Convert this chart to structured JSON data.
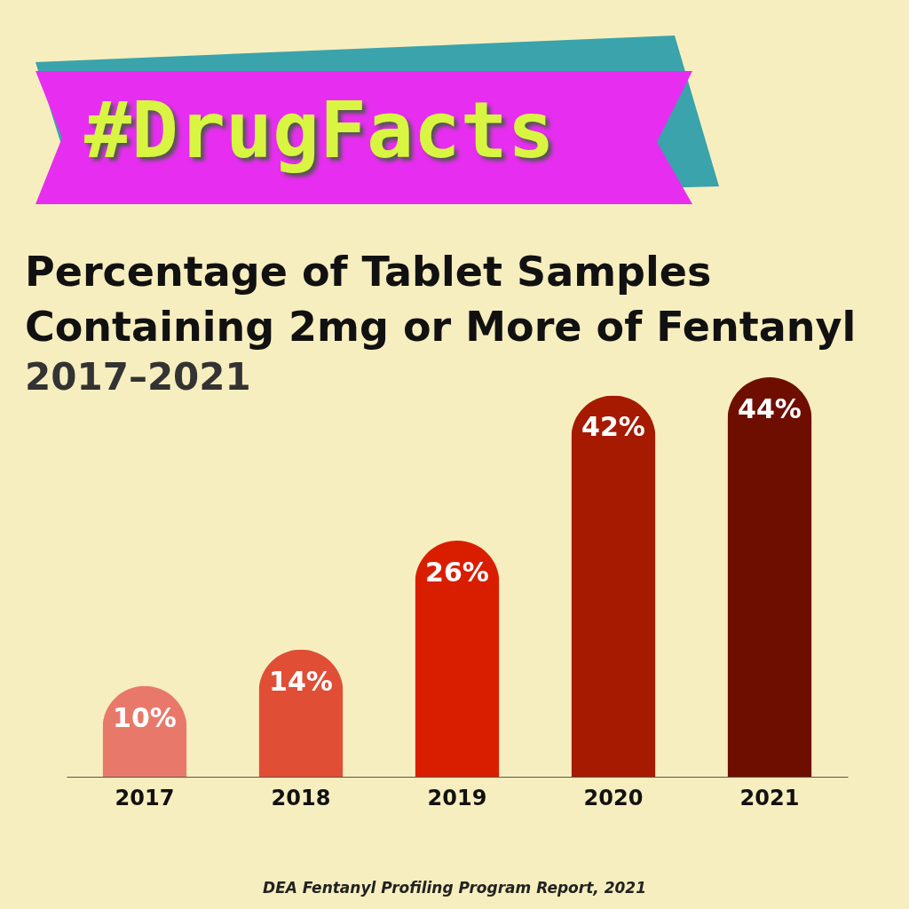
{
  "chart_data": {
    "type": "bar",
    "title": "Percentage of Tablet Samples Containing 2mg or More of Fentanyl",
    "subtitle": "2017–2021",
    "annotations": [
      "#DrugFacts",
      "DEA Fentanyl Profiling Program Report, 2021"
    ],
    "categories": [
      "2017",
      "2018",
      "2019",
      "2020",
      "2021"
    ],
    "values": [
      10,
      14,
      26,
      42,
      44
    ],
    "colors": [
      "#e8796a",
      "#e04e36",
      "#d91e00",
      "#a51a00",
      "#6e0e00"
    ],
    "value_labels": [
      "10%",
      "14%",
      "26%",
      "42%",
      "44%"
    ],
    "legend": false,
    "grid": false
  }
}
